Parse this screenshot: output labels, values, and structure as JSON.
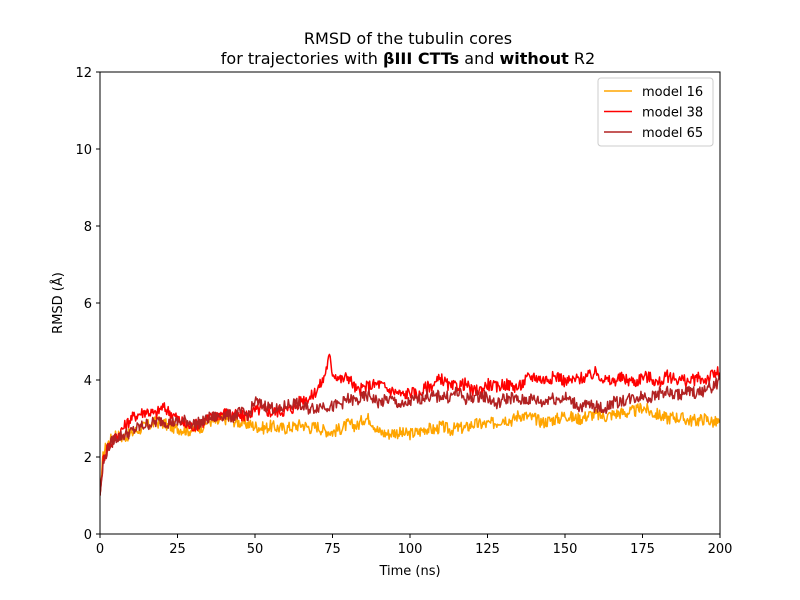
{
  "chart_data": {
    "type": "line",
    "title_line1": "RMSD of the tubulin cores",
    "title_line2": {
      "part1": "for trajectories with ",
      "bold1": "βIII CTTs",
      "part2": " and ",
      "bold2": "without",
      "part3": " R2"
    },
    "xlabel": "Time (ns)",
    "ylabel": "RMSD (Å)",
    "xlim": [
      0,
      200
    ],
    "ylim": [
      0,
      12
    ],
    "xticks": [
      0,
      25,
      50,
      75,
      100,
      125,
      150,
      175,
      200
    ],
    "yticks": [
      0,
      2,
      4,
      6,
      8,
      10,
      12
    ],
    "grid": false,
    "legend_position": "top-right",
    "series": [
      {
        "name": "model 16",
        "color": "#ffa500",
        "x": [
          0,
          1,
          2,
          3,
          5,
          7,
          10,
          12,
          15,
          18,
          20,
          22,
          25,
          28,
          30,
          33,
          35,
          38,
          40,
          43,
          45,
          48,
          50,
          53,
          55,
          58,
          60,
          63,
          65,
          68,
          70,
          72,
          75,
          78,
          80,
          83,
          85,
          87,
          90,
          93,
          95,
          98,
          100,
          103,
          105,
          108,
          110,
          113,
          115,
          118,
          120,
          123,
          125,
          128,
          130,
          133,
          135,
          138,
          140,
          143,
          145,
          148,
          150,
          153,
          155,
          158,
          160,
          163,
          165,
          168,
          170,
          173,
          175,
          178,
          180,
          183,
          185,
          188,
          190,
          193,
          195,
          198,
          200
        ],
        "y": [
          1.0,
          2.0,
          2.3,
          2.4,
          2.6,
          2.5,
          2.6,
          2.7,
          2.8,
          2.9,
          2.9,
          2.8,
          2.75,
          2.7,
          2.7,
          2.8,
          2.95,
          2.9,
          3.0,
          2.95,
          2.9,
          2.85,
          2.8,
          2.75,
          2.8,
          2.75,
          2.75,
          2.8,
          2.85,
          2.75,
          2.8,
          2.7,
          2.65,
          2.75,
          2.85,
          2.8,
          3.0,
          3.0,
          2.65,
          2.6,
          2.65,
          2.6,
          2.6,
          2.65,
          2.75,
          2.7,
          2.8,
          2.7,
          2.75,
          2.75,
          2.85,
          2.85,
          2.85,
          2.9,
          3.0,
          2.95,
          3.1,
          3.05,
          3.0,
          2.9,
          2.95,
          3.0,
          3.1,
          3.0,
          3.0,
          3.1,
          3.1,
          3.05,
          3.1,
          3.15,
          3.15,
          3.2,
          3.3,
          3.15,
          3.1,
          3.0,
          3.05,
          3.0,
          2.95,
          2.95,
          3.0,
          2.9,
          2.9
        ]
      },
      {
        "name": "model 38",
        "color": "#ff0000",
        "x": [
          0,
          1,
          2,
          3,
          5,
          7,
          10,
          12,
          15,
          18,
          20,
          22,
          25,
          28,
          30,
          33,
          35,
          38,
          40,
          43,
          45,
          48,
          50,
          53,
          55,
          58,
          60,
          63,
          65,
          68,
          70,
          72,
          74,
          75,
          78,
          80,
          83,
          85,
          87,
          90,
          93,
          95,
          98,
          100,
          103,
          105,
          108,
          110,
          113,
          115,
          118,
          120,
          123,
          125,
          128,
          130,
          133,
          135,
          138,
          140,
          143,
          145,
          148,
          150,
          153,
          155,
          158,
          160,
          163,
          165,
          168,
          170,
          173,
          175,
          178,
          180,
          183,
          185,
          188,
          190,
          193,
          195,
          198,
          200
        ],
        "y": [
          1.0,
          1.9,
          2.2,
          2.3,
          2.5,
          2.7,
          3.0,
          3.1,
          3.2,
          3.1,
          3.3,
          3.2,
          3.0,
          2.8,
          2.8,
          2.9,
          3.0,
          3.1,
          3.15,
          3.1,
          3.05,
          3.1,
          3.2,
          3.25,
          3.15,
          3.2,
          3.2,
          3.3,
          3.5,
          3.55,
          3.75,
          4.0,
          4.6,
          4.2,
          4.0,
          4.1,
          3.7,
          3.8,
          3.85,
          3.9,
          3.75,
          3.7,
          3.6,
          3.7,
          3.6,
          3.8,
          3.9,
          4.05,
          3.8,
          3.85,
          3.9,
          3.7,
          3.75,
          3.9,
          3.8,
          3.9,
          3.85,
          3.8,
          4.05,
          4.1,
          4.0,
          4.05,
          4.1,
          3.95,
          4.0,
          4.05,
          4.1,
          4.2,
          4.0,
          3.95,
          4.05,
          4.0,
          3.95,
          4.1,
          4.05,
          3.9,
          4.1,
          4.05,
          4.0,
          3.95,
          4.05,
          4.0,
          4.15,
          4.2
        ]
      },
      {
        "name": "model 65",
        "color": "#b22222",
        "x": [
          0,
          1,
          2,
          3,
          5,
          7,
          10,
          12,
          15,
          18,
          20,
          22,
          25,
          28,
          30,
          33,
          35,
          38,
          40,
          43,
          45,
          48,
          50,
          52,
          55,
          58,
          60,
          63,
          65,
          68,
          70,
          72,
          75,
          78,
          80,
          83,
          85,
          87,
          90,
          93,
          95,
          98,
          100,
          103,
          105,
          108,
          110,
          113,
          115,
          118,
          120,
          123,
          125,
          128,
          130,
          133,
          135,
          138,
          140,
          143,
          145,
          148,
          150,
          153,
          155,
          158,
          160,
          163,
          165,
          168,
          170,
          173,
          175,
          178,
          180,
          183,
          185,
          188,
          190,
          193,
          195,
          198,
          200
        ],
        "y": [
          1.0,
          1.8,
          2.1,
          2.3,
          2.5,
          2.55,
          2.65,
          2.75,
          2.85,
          2.9,
          2.95,
          2.9,
          2.9,
          2.95,
          2.85,
          2.9,
          3.0,
          3.05,
          3.1,
          3.05,
          3.15,
          3.1,
          3.45,
          3.35,
          3.3,
          3.2,
          3.35,
          3.4,
          3.3,
          3.25,
          3.3,
          3.35,
          3.3,
          3.4,
          3.5,
          3.45,
          3.55,
          3.6,
          3.4,
          3.5,
          3.45,
          3.3,
          3.45,
          3.5,
          3.6,
          3.55,
          3.6,
          3.55,
          3.7,
          3.5,
          3.55,
          3.6,
          3.55,
          3.35,
          3.5,
          3.55,
          3.45,
          3.5,
          3.5,
          3.4,
          3.55,
          3.5,
          3.55,
          3.4,
          3.3,
          3.35,
          3.3,
          3.25,
          3.4,
          3.45,
          3.5,
          3.55,
          3.6,
          3.55,
          3.65,
          3.7,
          3.6,
          3.65,
          3.7,
          3.65,
          3.75,
          3.85,
          4.0
        ]
      }
    ]
  }
}
